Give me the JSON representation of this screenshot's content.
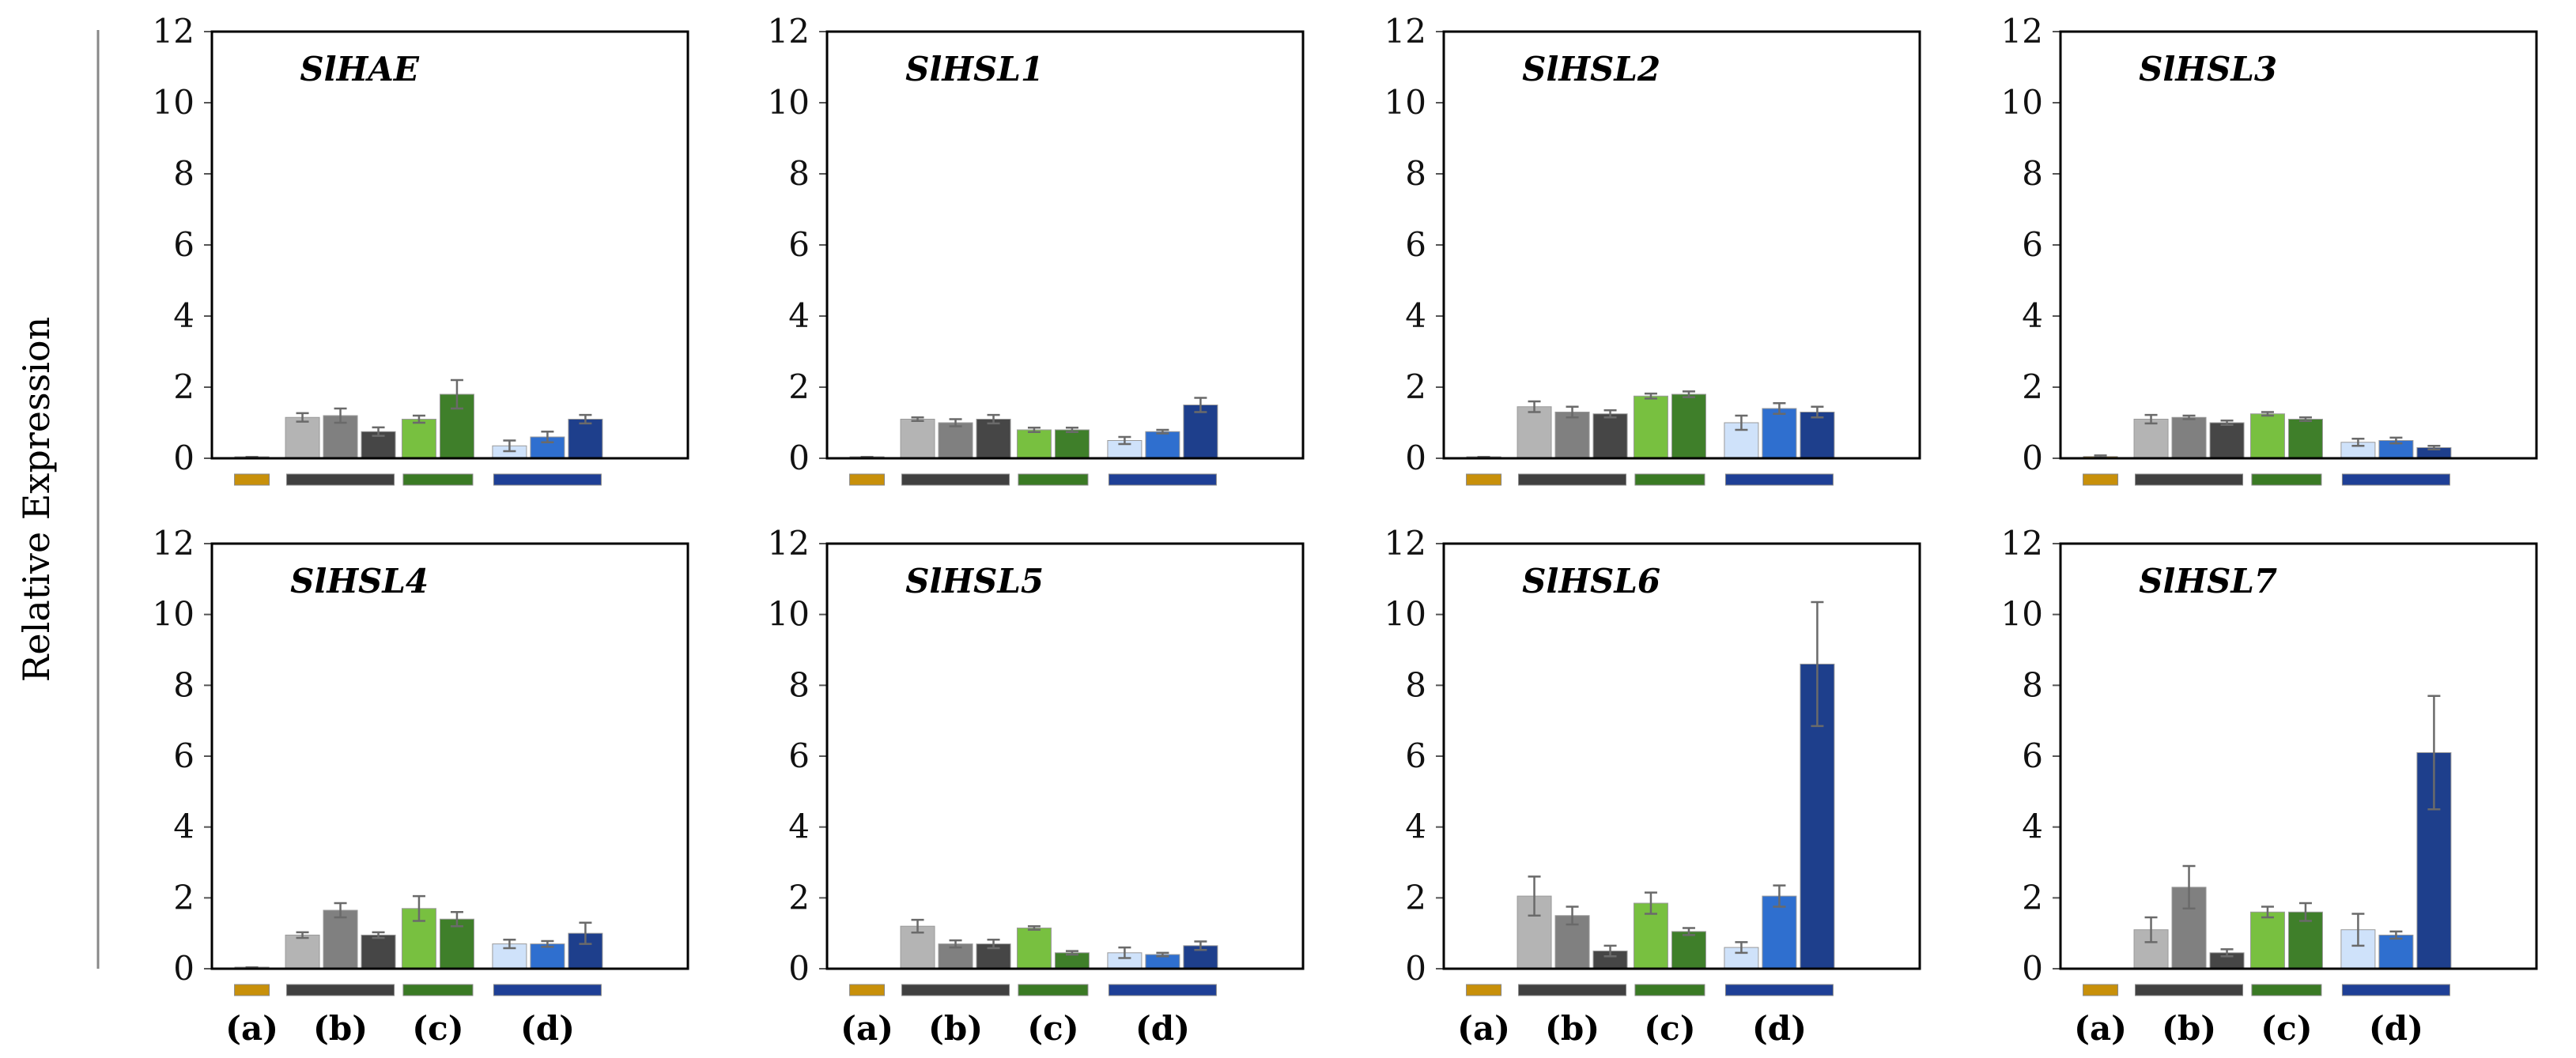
{
  "chart_data": {
    "type": "bar",
    "ylabel": "Relative Expression",
    "ylim": [
      0,
      12
    ],
    "yticks": [
      0,
      2,
      4,
      6,
      8,
      10,
      12
    ],
    "group_labels": [
      "(a)",
      "(b)",
      "(c)",
      "(d)"
    ],
    "group_colors": {
      "a": [
        "#c8900a"
      ],
      "b": [
        "#b4b4b4",
        "#808080",
        "#464646"
      ],
      "c": [
        "#78c040",
        "#3f7f2a"
      ],
      "d": [
        "#cfe2fa",
        "#2f6fcf",
        "#1e3f8c"
      ]
    },
    "group_bar_colors": [
      "#c8900a",
      "#404040",
      "#3a7a24",
      "#1e3f96"
    ],
    "panels": [
      {
        "title": "SlHAE",
        "groups": {
          "a": [
            0.02
          ],
          "b": [
            1.15,
            1.2,
            0.75
          ],
          "c": [
            1.1,
            1.8
          ],
          "d": [
            0.35,
            0.6,
            1.1
          ]
        },
        "errors": {
          "a": [
            0.02
          ],
          "b": [
            0.12,
            0.2,
            0.12
          ],
          "c": [
            0.1,
            0.4
          ],
          "d": [
            0.15,
            0.15,
            0.12
          ]
        }
      },
      {
        "title": "SlHSL1",
        "groups": {
          "a": [
            0.02
          ],
          "b": [
            1.1,
            1.0,
            1.1
          ],
          "c": [
            0.8,
            0.8
          ],
          "d": [
            0.5,
            0.75,
            1.5
          ]
        },
        "errors": {
          "a": [
            0.02
          ],
          "b": [
            0.05,
            0.1,
            0.12
          ],
          "c": [
            0.06,
            0.06
          ],
          "d": [
            0.1,
            0.05,
            0.2
          ]
        }
      },
      {
        "title": "SlHSL2",
        "groups": {
          "a": [
            0.02
          ],
          "b": [
            1.45,
            1.3,
            1.25
          ],
          "c": [
            1.75,
            1.8
          ],
          "d": [
            1.0,
            1.4,
            1.3
          ]
        },
        "errors": {
          "a": [
            0.02
          ],
          "b": [
            0.15,
            0.15,
            0.1
          ],
          "c": [
            0.07,
            0.08
          ],
          "d": [
            0.2,
            0.15,
            0.15
          ]
        }
      },
      {
        "title": "SlHSL3",
        "groups": {
          "a": [
            0.05
          ],
          "b": [
            1.1,
            1.15,
            1.0
          ],
          "c": [
            1.25,
            1.1
          ],
          "d": [
            0.45,
            0.5,
            0.3
          ]
        },
        "errors": {
          "a": [
            0.03
          ],
          "b": [
            0.12,
            0.05,
            0.06
          ],
          "c": [
            0.05,
            0.05
          ],
          "d": [
            0.1,
            0.08,
            0.05
          ]
        }
      },
      {
        "title": "SlHSL4",
        "groups": {
          "a": [
            0.02
          ],
          "b": [
            0.95,
            1.65,
            0.95
          ],
          "c": [
            1.7,
            1.4
          ],
          "d": [
            0.7,
            0.7,
            1.0
          ]
        },
        "errors": {
          "a": [
            0.02
          ],
          "b": [
            0.08,
            0.2,
            0.08
          ],
          "c": [
            0.35,
            0.2
          ],
          "d": [
            0.12,
            0.08,
            0.3
          ]
        }
      },
      {
        "title": "SlHSL5",
        "groups": {
          "a": [
            0.0
          ],
          "b": [
            1.2,
            0.7,
            0.7
          ],
          "c": [
            1.15,
            0.45
          ],
          "d": [
            0.45,
            0.4,
            0.65
          ]
        },
        "errors": {
          "a": [
            0.0
          ],
          "b": [
            0.18,
            0.1,
            0.12
          ],
          "c": [
            0.05,
            0.05
          ],
          "d": [
            0.15,
            0.05,
            0.12
          ]
        }
      },
      {
        "title": "SlHSL6",
        "groups": {
          "a": [
            0.0
          ],
          "b": [
            2.05,
            1.5,
            0.5
          ],
          "c": [
            1.85,
            1.05
          ],
          "d": [
            0.6,
            2.05,
            8.6
          ]
        },
        "errors": {
          "a": [
            0.0
          ],
          "b": [
            0.55,
            0.25,
            0.15
          ],
          "c": [
            0.3,
            0.1
          ],
          "d": [
            0.15,
            0.3,
            1.75
          ]
        }
      },
      {
        "title": "SlHSL7",
        "groups": {
          "a": [
            0.0
          ],
          "b": [
            1.1,
            2.3,
            0.45
          ],
          "c": [
            1.6,
            1.6
          ],
          "d": [
            1.1,
            0.95,
            6.1
          ]
        },
        "errors": {
          "a": [
            0.0
          ],
          "b": [
            0.35,
            0.6,
            0.1
          ],
          "c": [
            0.15,
            0.25
          ],
          "d": [
            0.45,
            0.1,
            1.6
          ]
        }
      }
    ]
  }
}
